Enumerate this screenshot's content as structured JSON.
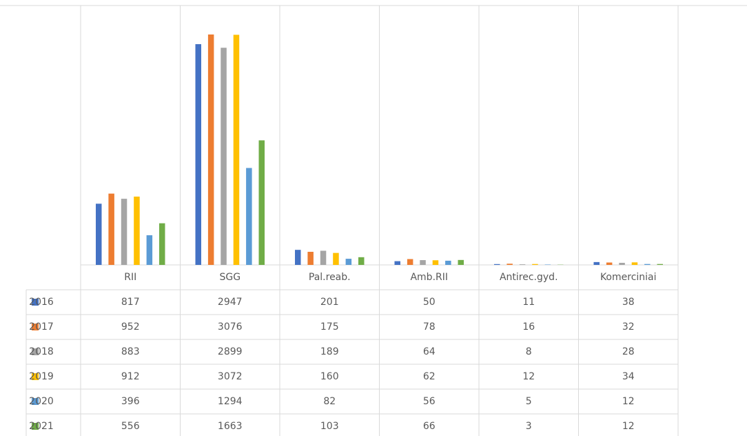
{
  "chart_data": {
    "type": "bar",
    "categories": [
      "RII",
      "SGG",
      "Pal.reab.",
      "Amb.RII",
      "Antirec.gyd.",
      "Komerciniai"
    ],
    "series": [
      {
        "name": "2016",
        "color": "#4472c4",
        "values": [
          817,
          2947,
          201,
          50,
          11,
          38
        ]
      },
      {
        "name": "2017",
        "color": "#ed7d31",
        "values": [
          952,
          3076,
          175,
          78,
          16,
          32
        ]
      },
      {
        "name": "2018",
        "color": "#a5a5a5",
        "values": [
          883,
          2899,
          189,
          64,
          8,
          28
        ]
      },
      {
        "name": "2019",
        "color": "#ffc000",
        "values": [
          912,
          3072,
          160,
          62,
          12,
          34
        ]
      },
      {
        "name": "2020",
        "color": "#5b9bd5",
        "values": [
          396,
          1294,
          82,
          56,
          5,
          12
        ]
      },
      {
        "name": "2021",
        "color": "#70ad47",
        "values": [
          556,
          1663,
          103,
          66,
          3,
          12
        ]
      }
    ]
  }
}
